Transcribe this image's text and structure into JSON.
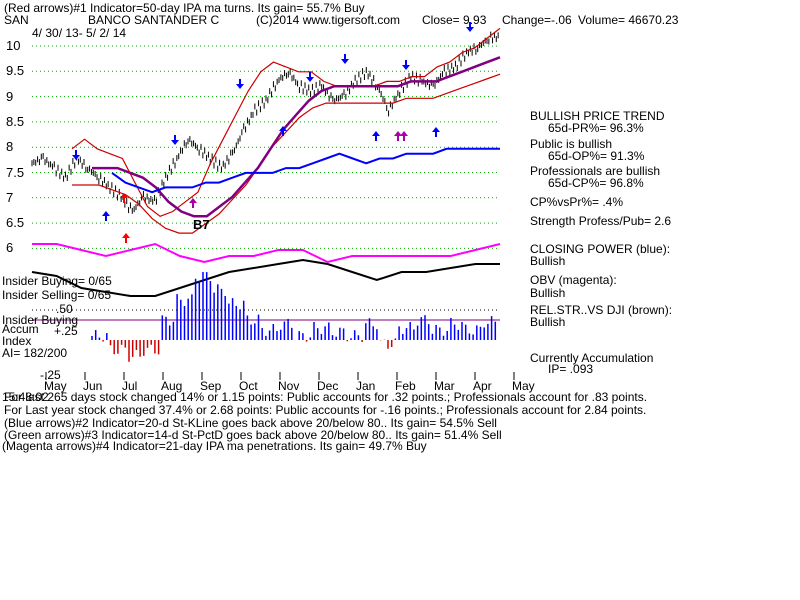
{
  "header": {
    "line1": "(Red arrows)#1 Indicator=50-day IPA ma turns. Its gain= 55.7% Buy",
    "symbol": "SAN",
    "company": "BANCO SANTANDER C",
    "copyright": "(C)2014 www.tigersoft.com",
    "close": "Close=  9.93",
    "change": "Change=-.06",
    "volume": "Volume= 46670.23",
    "dates": "4/ 30/ 13- 5/ 2/ 14"
  },
  "right_panel": {
    "trend_title": "BULLISH PRICE TREND",
    "pr_value": "65d-PR%= 96.3%",
    "public_title": "Public is bullish",
    "op_value": "65d-OP%= 91.3%",
    "prof_title": "Professionals are bullish",
    "cp_value": "65d-CP%= 96.8%",
    "cpvspr": "CP%vsPr%=  .4%",
    "strength": "Strength Profess/Pub= 2.6",
    "closing_power": "CLOSING POWER (blue):",
    "closing_power_val": "Bullish",
    "obv": "OBV (magenta):",
    "obv_val": "Bullish",
    "relstr": "REL.STR..VS DJI (brown):",
    "relstr_val": "Bullish",
    "accum": "Currently Accumulation",
    "ip": "IP=  .093"
  },
  "left_panel": {
    "insider_buying": "Insider Buying= 0/65",
    "insider_selling": "Insider Selling= 0/65",
    "fifty": ".50",
    "insider_buying2": "Insider Buying",
    "accum_label": "Accum",
    "plus25": "+.25",
    "index_label": "Index",
    "ai": "AI= 182/200",
    "minus25": "-.25",
    "b7": "B7"
  },
  "footer": {
    "line1": "For last 265 days stock changed  14% or  1.15 points:  Public accounts for  .32 points.;  Professionals account for  .83 points.",
    "line1_overlap": "15:48:02",
    "line2": "For Last year stock changed  37.4% or  2.68 points:  Public accounts for -.16 points.;  Professionals account for  2.84 points.",
    "line3": "(Blue arrows)#2 Indicator=20-d St-KLine goes back above 20/below 80.. Its gain= 54.5% Sell",
    "line4": "(Green arrows)#3 Indicator=14-d St-PctD goes back above 20/below 80.. Its gain= 51.4% Sell",
    "line5": "(Magenta arrows)#4 Indicator=21-day IPA ma penetrations. Its gain= 49.7% Buy"
  },
  "colors": {
    "price": "#000000",
    "band": "#cc0000",
    "ma": "#800080",
    "closing_power": "#0000ff",
    "obv": "#ff00ff",
    "relstr": "#000000",
    "grid": "#00aa00",
    "accum_bar": "#0000ff",
    "neg_bar": "#cc0000",
    "arrow_blue": "#0000ff",
    "arrow_red": "#ff0000",
    "arrow_magenta": "#aa00aa"
  },
  "chart_data": {
    "type": "line",
    "ylim": [
      5.5,
      10.15
    ],
    "y_ticks": [
      "10",
      "9.5",
      "9",
      "8.5",
      "8",
      "7.5",
      "7",
      "6.5",
      "6"
    ],
    "x_ticks": [
      "May",
      "Jun",
      "Jul",
      "Aug",
      "Sep",
      "Oct",
      "Nov",
      "Dec",
      "Jan",
      "Feb",
      "Mar",
      "Apr",
      "May"
    ],
    "series": [
      {
        "values": [
          7.3,
          7.4,
          7.2,
          7.0,
          7.4,
          7.2,
          7.0,
          6.8,
          6.6,
          6.3,
          6.6,
          6.5,
          7.0,
          7.4,
          7.8,
          7.6,
          7.4,
          7.2,
          7.5,
          8.0,
          8.4,
          8.6,
          9.0,
          9.2,
          8.9,
          8.8,
          8.9,
          8.6,
          8.7,
          9.0,
          9.2,
          8.9,
          8.4,
          8.8,
          9.1,
          9.0,
          8.9,
          9.2,
          9.3,
          9.6,
          9.7,
          9.9,
          9.93
        ]
      },
      {
        "values": [
          7.6,
          7.8,
          7.6,
          7.5,
          7.4,
          6.9,
          6.4,
          6.2,
          6.3,
          6.5,
          6.7,
          7.3,
          7.8,
          8.3,
          8.8,
          9.2,
          9.4,
          9.3,
          9.2,
          9.2,
          9.0,
          8.9,
          8.9,
          8.9,
          8.9,
          9.0,
          9.0,
          9.1,
          9.1,
          9.3,
          9.4,
          9.6,
          9.7,
          9.9,
          10.1
        ]
      },
      {
        "values": [
          7.2,
          7.2,
          7.2,
          7.1,
          7.0,
          6.8,
          6.5,
          6.3,
          6.2,
          6.2,
          6.4,
          6.6,
          6.9,
          7.2,
          7.6,
          8.0,
          8.3,
          8.6,
          8.8,
          8.9,
          8.9,
          8.9,
          8.9,
          8.9,
          8.9,
          9.0,
          9.0,
          9.0,
          9.1,
          9.2,
          9.3,
          9.4,
          9.5
        ]
      },
      {
        "values": [
          7.1,
          6.9,
          6.8,
          6.7,
          6.8,
          6.8,
          6.8,
          6.9,
          6.9,
          7.0,
          7.1,
          7.1,
          7.1,
          7.2,
          7.2,
          7.3,
          7.4,
          7.5,
          7.4,
          7.3,
          7.4,
          7.4,
          7.5,
          7.5,
          7.5,
          7.6,
          7.6,
          7.6,
          7.6,
          7.6
        ]
      },
      {
        "values": [
          6.0,
          6.0,
          5.95,
          5.9,
          5.95,
          6.0,
          5.9,
          5.85,
          5.9,
          5.9,
          5.95,
          5.95,
          5.85,
          5.9,
          5.9,
          5.9,
          5.9,
          5.9,
          5.95,
          6.0
        ]
      },
      {
        "values": [
          5.8,
          5.75,
          5.6,
          5.55,
          5.5,
          5.5,
          5.6,
          5.7,
          5.8,
          5.85,
          5.9,
          5.95,
          5.9,
          5.8,
          5.7,
          5.8,
          5.8,
          5.85,
          5.9,
          5.9
        ]
      }
    ],
    "accum_values": [
      0.02,
      -0.05,
      -0.08,
      -0.05,
      0.1,
      0.2,
      0.32,
      0.25,
      0.18,
      0.1,
      0.05,
      0.08,
      0.02,
      0.06,
      0.04,
      0.02,
      0.08,
      -0.02,
      0.06,
      0.1,
      0.05,
      0.08,
      0.05,
      0.09
    ]
  }
}
